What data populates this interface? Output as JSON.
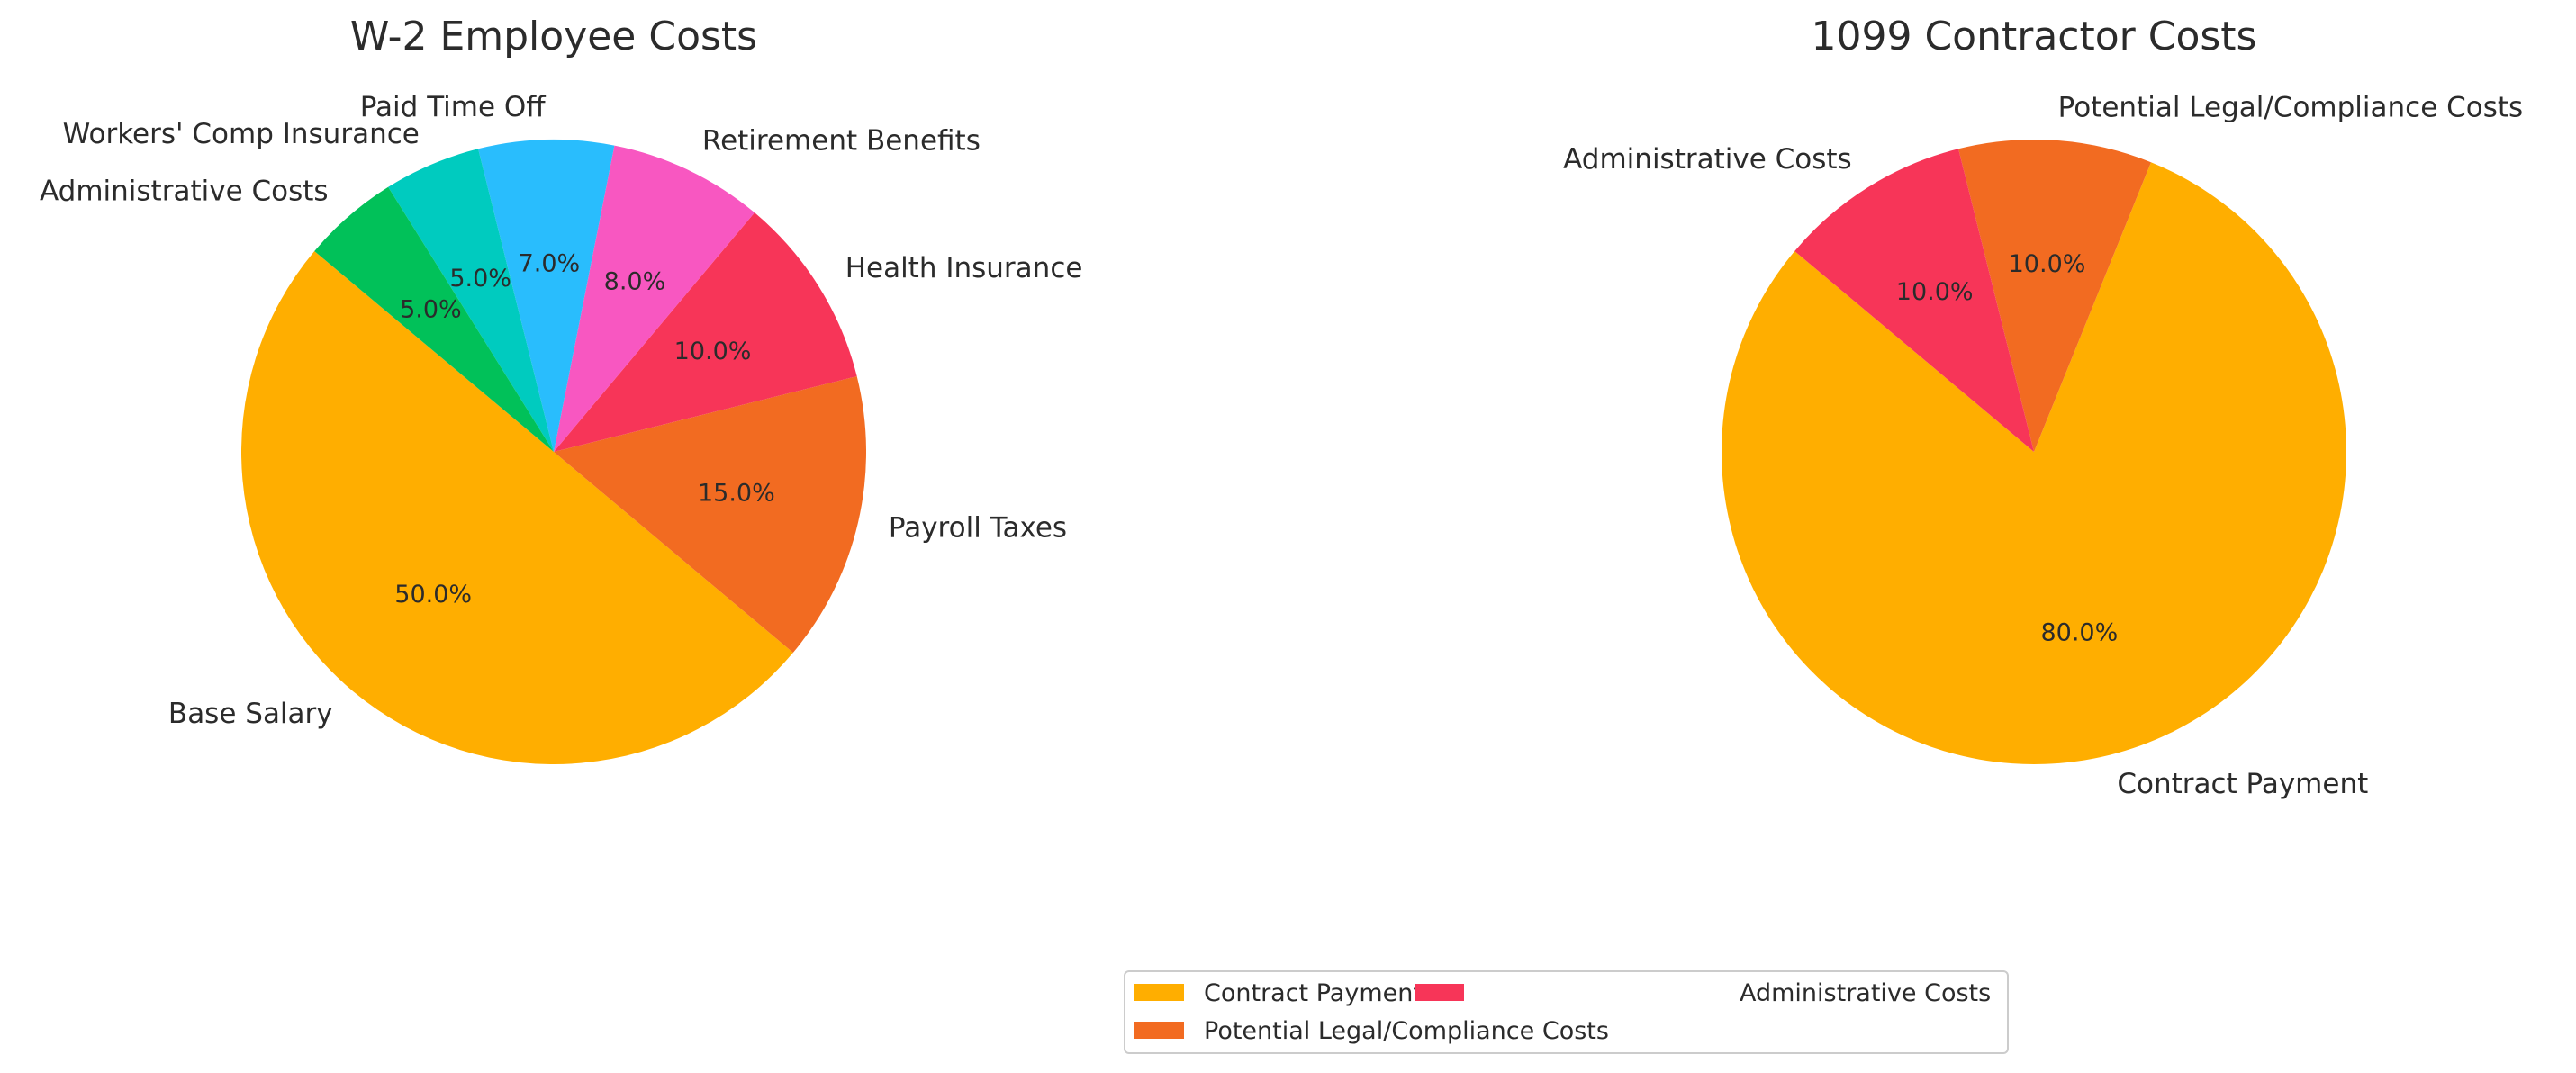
{
  "chart_data": [
    {
      "type": "pie",
      "title": "W-2 Employee Costs",
      "start_angle_deg": 140,
      "direction": "counterclockwise",
      "categories": [
        "Base Salary",
        "Payroll Taxes",
        "Health Insurance",
        "Retirement Benefits",
        "Paid Time Off",
        "Workers' Comp Insurance",
        "Administrative Costs"
      ],
      "values": [
        50,
        15,
        10,
        8,
        7,
        5,
        5
      ],
      "pct_labels": [
        "50.0%",
        "15.0%",
        "10.0%",
        "8.0%",
        "7.0%",
        "5.0%",
        "5.0%"
      ],
      "colors": [
        "#FFAE00",
        "#F26B21",
        "#F73558",
        "#F857C1",
        "#29BDFD",
        "#00CBBF",
        "#01C159"
      ]
    },
    {
      "type": "pie",
      "title": "1099 Contractor Costs",
      "start_angle_deg": 140,
      "direction": "counterclockwise",
      "categories": [
        "Contract Payment",
        "Potential Legal/Compliance Costs",
        "Administrative Costs"
      ],
      "values": [
        80,
        10,
        10
      ],
      "pct_labels": [
        "80.0%",
        "10.0%",
        "10.0%"
      ],
      "colors": [
        "#FFAE00",
        "#F26B21",
        "#F73558"
      ],
      "legend": {
        "placement": "bottom-center",
        "columns": 2,
        "entries": [
          "Contract Payment",
          "Potential Legal/Compliance Costs",
          "Administrative Costs"
        ]
      }
    }
  ]
}
